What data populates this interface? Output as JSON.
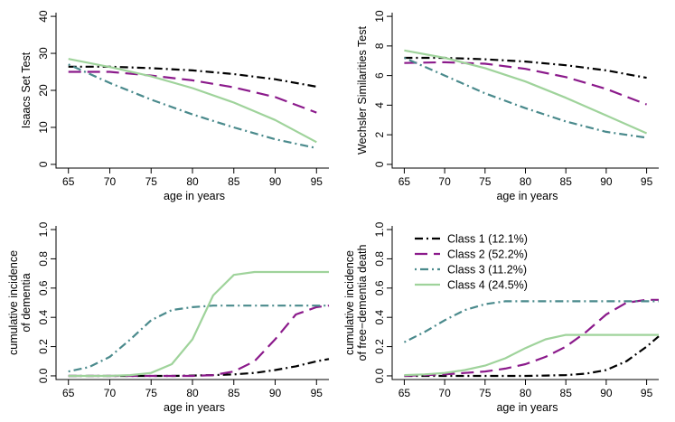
{
  "series_styles": [
    {
      "name": "Class 1 (12.1%)",
      "color": "#000000",
      "dash": "9 4 2 4"
    },
    {
      "name": "Class 2 (52.2%)",
      "color": "#8b1a8b",
      "dash": "14 7"
    },
    {
      "name": "Class 3 (11.2%)",
      "color": "#4a8a8c",
      "dash": "2 4 9 4"
    },
    {
      "name": "Class 4 (24.5%)",
      "color": "#9fd39b",
      "dash": ""
    }
  ],
  "chart_data": [
    {
      "id": "isaacs",
      "type": "line",
      "xlabel": "age in years",
      "ylabel": "Isaacs Set Test",
      "xlim": [
        63.5,
        96.5
      ],
      "ylim": [
        -1,
        41
      ],
      "xticks": [
        65,
        70,
        75,
        80,
        85,
        90,
        95
      ],
      "yticks": [
        0,
        10,
        20,
        30,
        40
      ],
      "x": [
        65,
        70,
        75,
        80,
        85,
        90,
        95
      ],
      "series": [
        {
          "name": "Class 1 (12.1%)",
          "values": [
            26.4,
            26.4,
            26.0,
            25.4,
            24.4,
            23.0,
            21.0
          ]
        },
        {
          "name": "Class 2 (52.2%)",
          "values": [
            25.0,
            25.0,
            24.0,
            22.7,
            20.8,
            18.2,
            14.0
          ]
        },
        {
          "name": "Class 3 (11.2%)",
          "values": [
            27.0,
            22.0,
            17.5,
            13.5,
            10.0,
            6.8,
            4.4
          ]
        },
        {
          "name": "Class 4 (24.5%)",
          "values": [
            28.5,
            26.3,
            23.8,
            20.6,
            16.7,
            12.0,
            6.0
          ]
        }
      ]
    },
    {
      "id": "wechsler",
      "type": "line",
      "xlabel": "age in years",
      "ylabel": "Wechsler Similarities Test",
      "xlim": [
        63.5,
        96.5
      ],
      "ylim": [
        -0.25,
        10.25
      ],
      "xticks": [
        65,
        70,
        75,
        80,
        85,
        90,
        95
      ],
      "yticks": [
        0,
        2,
        4,
        6,
        8,
        10
      ],
      "x": [
        65,
        70,
        75,
        80,
        85,
        90,
        95
      ],
      "series": [
        {
          "name": "Class 1 (12.1%)",
          "values": [
            7.2,
            7.2,
            7.1,
            6.95,
            6.7,
            6.35,
            5.85
          ]
        },
        {
          "name": "Class 2 (52.2%)",
          "values": [
            6.85,
            6.9,
            6.8,
            6.45,
            5.9,
            5.1,
            4.05
          ]
        },
        {
          "name": "Class 3 (11.2%)",
          "values": [
            7.2,
            6.0,
            4.8,
            3.8,
            2.9,
            2.2,
            1.8
          ]
        },
        {
          "name": "Class 4 (24.5%)",
          "values": [
            7.7,
            7.2,
            6.5,
            5.6,
            4.5,
            3.3,
            2.1
          ]
        }
      ]
    },
    {
      "id": "dementia",
      "type": "line",
      "xlabel": "age in years",
      "ylabel": [
        "cumulative incidence",
        "of dementia"
      ],
      "xlim": [
        63.5,
        96.5
      ],
      "ylim": [
        -0.025,
        1.025
      ],
      "xticks": [
        65,
        70,
        75,
        80,
        85,
        90,
        95
      ],
      "yticks": [
        0.0,
        0.2,
        0.4,
        0.6,
        0.8,
        1.0
      ],
      "tick_label_text": [
        "0.0",
        "0.2",
        "0.4",
        "0.6",
        "0.8",
        "1.0"
      ],
      "x": [
        65,
        67.5,
        70,
        72.5,
        75,
        77.5,
        80,
        82.5,
        85,
        87.5,
        90,
        92.5,
        95,
        96.5
      ],
      "series": [
        {
          "name": "Class 1 (12.1%)",
          "values": [
            0.0,
            0.0,
            0.0,
            0.0,
            0.0,
            0.0,
            0.002,
            0.005,
            0.01,
            0.02,
            0.04,
            0.065,
            0.1,
            0.115
          ]
        },
        {
          "name": "Class 2 (52.2%)",
          "values": [
            0.0,
            0.0,
            0.0,
            0.0,
            0.0,
            0.0,
            0.0,
            0.005,
            0.03,
            0.1,
            0.25,
            0.42,
            0.47,
            0.48
          ]
        },
        {
          "name": "Class 3 (11.2%)",
          "values": [
            0.03,
            0.06,
            0.13,
            0.25,
            0.38,
            0.45,
            0.47,
            0.48,
            0.48,
            0.48,
            0.48,
            0.48,
            0.48,
            0.48
          ]
        },
        {
          "name": "Class 4 (24.5%)",
          "values": [
            0.0,
            0.0,
            0.0,
            0.005,
            0.02,
            0.08,
            0.25,
            0.55,
            0.69,
            0.71,
            0.71,
            0.71,
            0.71,
            0.71
          ]
        }
      ]
    },
    {
      "id": "death",
      "type": "line",
      "xlabel": "age in years",
      "ylabel": [
        "cumulative incidence",
        "of free−dementia death"
      ],
      "xlim": [
        63.5,
        96.5
      ],
      "ylim": [
        -0.025,
        1.025
      ],
      "xticks": [
        65,
        70,
        75,
        80,
        85,
        90,
        95
      ],
      "yticks": [
        0.0,
        0.2,
        0.4,
        0.6,
        0.8,
        1.0
      ],
      "tick_label_text": [
        "0.0",
        "0.2",
        "0.4",
        "0.6",
        "0.8",
        "1.0"
      ],
      "x": [
        65,
        67.5,
        70,
        72.5,
        75,
        77.5,
        80,
        82.5,
        85,
        87.5,
        90,
        92.5,
        95,
        96.5
      ],
      "series": [
        {
          "name": "Class 1 (12.1%)",
          "values": [
            0.0,
            0.0,
            0.0,
            0.0,
            0.0,
            0.0,
            0.0,
            0.002,
            0.005,
            0.015,
            0.04,
            0.1,
            0.2,
            0.27
          ]
        },
        {
          "name": "Class 2 (52.2%)",
          "values": [
            0.0,
            0.005,
            0.01,
            0.02,
            0.03,
            0.05,
            0.08,
            0.13,
            0.2,
            0.3,
            0.42,
            0.5,
            0.52,
            0.52
          ]
        },
        {
          "name": "Class 3 (11.2%)",
          "values": [
            0.23,
            0.3,
            0.38,
            0.45,
            0.49,
            0.51,
            0.51,
            0.51,
            0.51,
            0.51,
            0.51,
            0.51,
            0.51,
            0.51
          ]
        },
        {
          "name": "Class 4 (24.5%)",
          "values": [
            0.005,
            0.01,
            0.02,
            0.04,
            0.07,
            0.12,
            0.19,
            0.25,
            0.28,
            0.28,
            0.28,
            0.28,
            0.28,
            0.28
          ]
        }
      ],
      "legend": {
        "position": "top-left",
        "entries": [
          "Class 1 (12.1%)",
          "Class 2 (52.2%)",
          "Class 3 (11.2%)",
          "Class 4 (24.5%)"
        ]
      }
    }
  ]
}
